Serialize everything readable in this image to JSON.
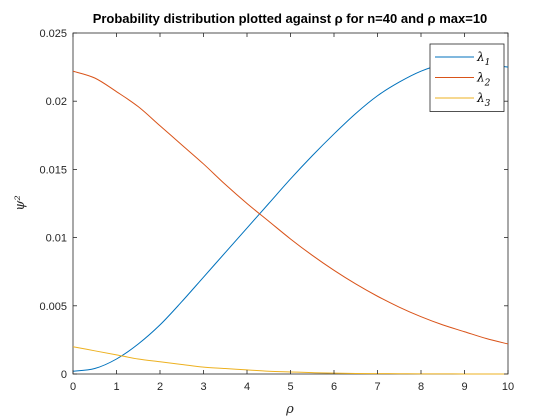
{
  "chart_data": {
    "type": "line",
    "title": "Probability distribution plotted against ρ for n=40 and ρ max=10",
    "xlabel": "ρ",
    "ylabel": "ψ²",
    "xlim": [
      0,
      10
    ],
    "ylim": [
      0,
      0.025
    ],
    "xticks": [
      "0",
      "1",
      "2",
      "3",
      "4",
      "5",
      "6",
      "7",
      "8",
      "9",
      "10"
    ],
    "yticks": [
      "0",
      "0.005",
      "0.01",
      "0.015",
      "0.02",
      "0.025"
    ],
    "grid": false,
    "legend_position": "top-right",
    "x": [
      0,
      0.5,
      1,
      1.5,
      2,
      2.5,
      3,
      3.5,
      4,
      4.5,
      5,
      5.5,
      6,
      6.5,
      7,
      7.5,
      8,
      8.5,
      9,
      9.5,
      10
    ],
    "series": [
      {
        "name": "λ1",
        "legend_main": "λ",
        "legend_sub": "1",
        "color": "#0072BD",
        "values": [
          0.0002,
          0.0004,
          0.0011,
          0.0022,
          0.0036,
          0.0053,
          0.0071,
          0.0089,
          0.0107,
          0.0125,
          0.0143,
          0.016,
          0.0176,
          0.0191,
          0.0204,
          0.0214,
          0.0222,
          0.0227,
          0.0228,
          0.0227,
          0.0225
        ]
      },
      {
        "name": "λ2",
        "legend_main": "λ",
        "legend_sub": "2",
        "color": "#D95319",
        "values": [
          0.0222,
          0.0217,
          0.0207,
          0.0196,
          0.0182,
          0.0168,
          0.0154,
          0.0139,
          0.0125,
          0.0112,
          0.0099,
          0.0087,
          0.0076,
          0.0066,
          0.0057,
          0.0049,
          0.0042,
          0.0036,
          0.0031,
          0.0026,
          0.0022
        ]
      },
      {
        "name": "λ3",
        "legend_main": "λ",
        "legend_sub": "3",
        "color": "#EDB120",
        "values": [
          0.002,
          0.0017,
          0.0014,
          0.0011,
          0.0009,
          0.0007,
          0.0005,
          0.0004,
          0.0003,
          0.0002,
          0.00015,
          0.0001,
          6e-05,
          4e-05,
          3e-05,
          2e-05,
          1e-05,
          1e-05,
          0.0,
          0.0,
          0.0
        ]
      }
    ]
  }
}
